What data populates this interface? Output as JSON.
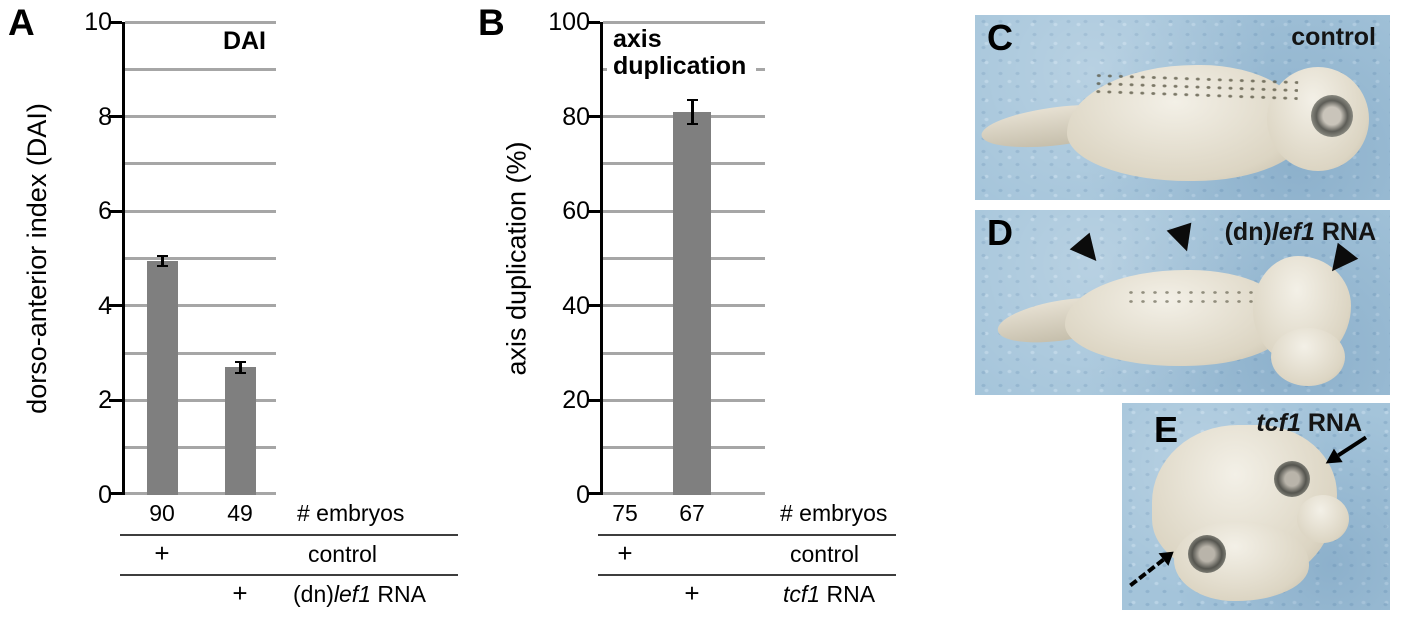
{
  "figure": {
    "panel_a": {
      "label": "A",
      "chart_title": "DAI",
      "ylabel": "dorso-anterior index (DAI)",
      "counts": [
        "90",
        "49"
      ],
      "counts_label": "# embryos",
      "row1": {
        "plus": "+",
        "label": "control"
      },
      "row2": {
        "plus": "+",
        "prefix": "(dn)",
        "gene": "lef1",
        "suffix": " RNA"
      }
    },
    "panel_b": {
      "label": "B",
      "chart_title_line1": "axis",
      "chart_title_line2": "duplication",
      "ylabel": "axis duplication (%)",
      "counts": [
        "75",
        "67"
      ],
      "counts_label": "# embryos",
      "row1": {
        "plus": "+",
        "label": "control"
      },
      "row2": {
        "plus": "+",
        "gene": "tcf1",
        "suffix": " RNA"
      }
    },
    "panel_c": {
      "label": "C",
      "caption": "control"
    },
    "panel_d": {
      "label": "D",
      "prefix": "(dn)",
      "gene": "lef1",
      "suffix": " RNA"
    },
    "panel_e": {
      "label": "E",
      "gene": "tcf1",
      "suffix": " RNA"
    }
  },
  "colors": {
    "bar": "#7f7f7f",
    "gridline": "#a6a6a6",
    "photo_background": "#a4c4da"
  },
  "chart_data": [
    {
      "type": "bar",
      "panel": "A",
      "title": "DAI",
      "ylabel": "dorso-anterior index (DAI)",
      "ylim": [
        0,
        10
      ],
      "yticks": [
        0,
        2,
        4,
        6,
        8,
        10
      ],
      "gridline_step": 1,
      "categories": [
        "control",
        "(dn)lef1 RNA"
      ],
      "n_embryos": [
        90,
        49
      ],
      "values": [
        4.95,
        2.7
      ],
      "errors": [
        0.1,
        0.12
      ],
      "bar_color": "#7f7f7f",
      "grid": true,
      "legend": false
    },
    {
      "type": "bar",
      "panel": "B",
      "title": "axis duplication",
      "ylabel": "axis duplication (%)",
      "ylim": [
        0,
        100
      ],
      "yticks": [
        0,
        20,
        40,
        60,
        80,
        100
      ],
      "gridline_step": 10,
      "categories": [
        "control",
        "tcf1 RNA"
      ],
      "n_embryos": [
        75,
        67
      ],
      "values": [
        0,
        81
      ],
      "errors": [
        0,
        2.5
      ],
      "bar_color": "#7f7f7f",
      "grid": true,
      "legend": false
    }
  ]
}
